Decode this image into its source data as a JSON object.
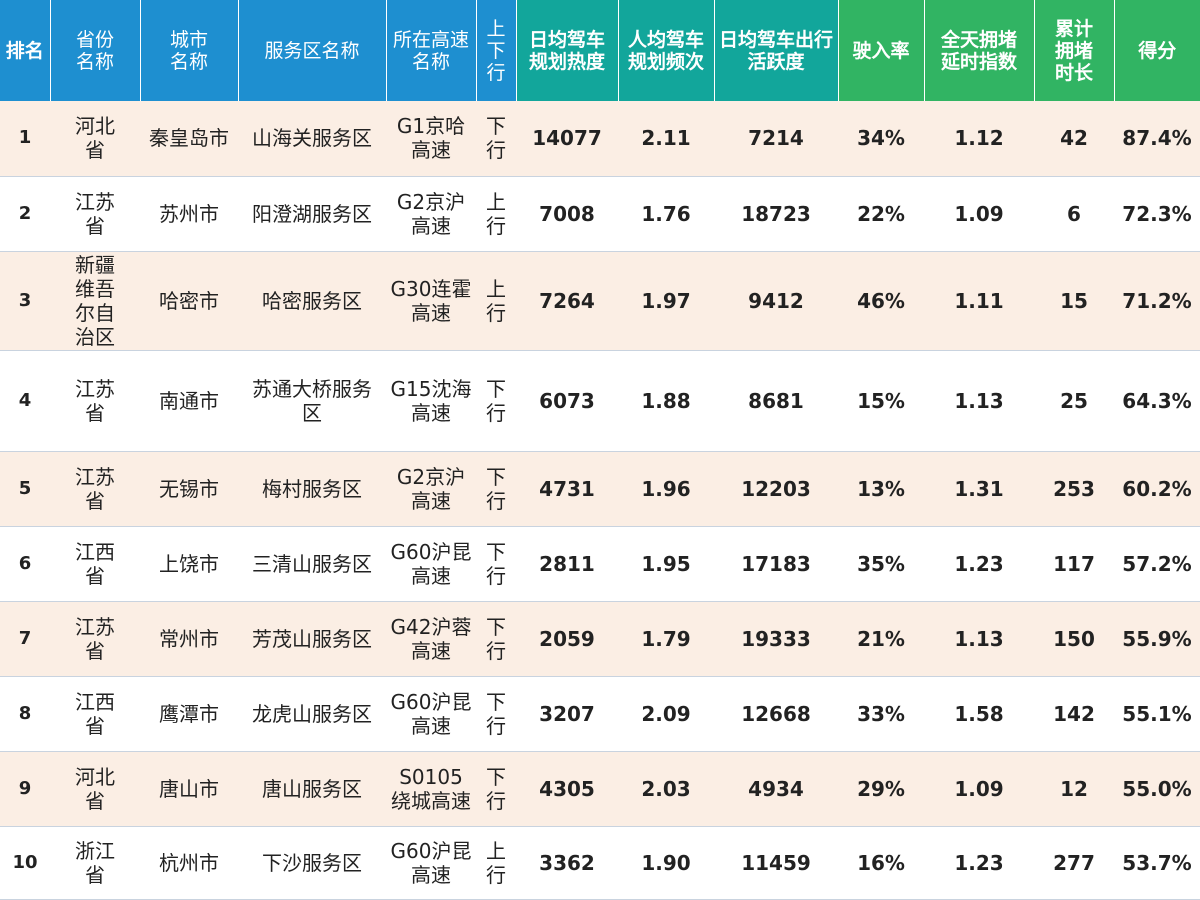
{
  "headers": {
    "rank": "排名",
    "province": "省份名称",
    "city": "城市名称",
    "service_area": "服务区名称",
    "highway": "所在高速名称",
    "direction": "上下行",
    "daily_heat": "日均驾车规划热度",
    "per_capita_freq": "人均驾车规划频次",
    "daily_activity": "日均驾车出行活跃度",
    "entry_rate": "驶入率",
    "congestion_index": "全天拥堵延时指数",
    "cumulative_hours": "累计拥堵时长",
    "score": "得分"
  },
  "rows": [
    {
      "rank": "1",
      "province": "河北省",
      "city": "秦皇岛市",
      "service_area": "山海关服务区",
      "highway": "G1京哈高速",
      "direction": "下行",
      "daily_heat": "14077",
      "per_capita_freq": "2.11",
      "daily_activity": "7214",
      "entry_rate": "34%",
      "congestion_index": "1.12",
      "cumulative_hours": "42",
      "score": "87.4%"
    },
    {
      "rank": "2",
      "province": "江苏省",
      "city": "苏州市",
      "service_area": "阳澄湖服务区",
      "highway": "G2京沪高速",
      "direction": "上行",
      "daily_heat": "7008",
      "per_capita_freq": "1.76",
      "daily_activity": "18723",
      "entry_rate": "22%",
      "congestion_index": "1.09",
      "cumulative_hours": "6",
      "score": "72.3%"
    },
    {
      "rank": "3",
      "province": "新疆维吾尔自治区",
      "city": "哈密市",
      "service_area": "哈密服务区",
      "highway": "G30连霍高速",
      "direction": "上行",
      "daily_heat": "7264",
      "per_capita_freq": "1.97",
      "daily_activity": "9412",
      "entry_rate": "46%",
      "congestion_index": "1.11",
      "cumulative_hours": "15",
      "score": "71.2%"
    },
    {
      "rank": "4",
      "province": "江苏省",
      "city": "南通市",
      "service_area": "苏通大桥服务区",
      "highway": "G15沈海高速",
      "direction": "下行",
      "daily_heat": "6073",
      "per_capita_freq": "1.88",
      "daily_activity": "8681",
      "entry_rate": "15%",
      "congestion_index": "1.13",
      "cumulative_hours": "25",
      "score": "64.3%"
    },
    {
      "rank": "5",
      "province": "江苏省",
      "city": "无锡市",
      "service_area": "梅村服务区",
      "highway": "G2京沪高速",
      "direction": "下行",
      "daily_heat": "4731",
      "per_capita_freq": "1.96",
      "daily_activity": "12203",
      "entry_rate": "13%",
      "congestion_index": "1.31",
      "cumulative_hours": "253",
      "score": "60.2%"
    },
    {
      "rank": "6",
      "province": "江西省",
      "city": "上饶市",
      "service_area": "三清山服务区",
      "highway": "G60沪昆高速",
      "direction": "下行",
      "daily_heat": "2811",
      "per_capita_freq": "1.95",
      "daily_activity": "17183",
      "entry_rate": "35%",
      "congestion_index": "1.23",
      "cumulative_hours": "117",
      "score": "57.2%"
    },
    {
      "rank": "7",
      "province": "江苏省",
      "city": "常州市",
      "service_area": "芳茂山服务区",
      "highway": "G42沪蓉高速",
      "direction": "下行",
      "daily_heat": "2059",
      "per_capita_freq": "1.79",
      "daily_activity": "19333",
      "entry_rate": "21%",
      "congestion_index": "1.13",
      "cumulative_hours": "150",
      "score": "55.9%"
    },
    {
      "rank": "8",
      "province": "江西省",
      "city": "鹰潭市",
      "service_area": "龙虎山服务区",
      "highway": "G60沪昆高速",
      "direction": "下行",
      "daily_heat": "3207",
      "per_capita_freq": "2.09",
      "daily_activity": "12668",
      "entry_rate": "33%",
      "congestion_index": "1.58",
      "cumulative_hours": "142",
      "score": "55.1%"
    },
    {
      "rank": "9",
      "province": "河北省",
      "city": "唐山市",
      "service_area": "唐山服务区",
      "highway": "S0105绕城高速",
      "direction": "下行",
      "daily_heat": "4305",
      "per_capita_freq": "2.03",
      "daily_activity": "4934",
      "entry_rate": "29%",
      "congestion_index": "1.09",
      "cumulative_hours": "12",
      "score": "55.0%"
    },
    {
      "rank": "10",
      "province": "浙江省",
      "city": "杭州市",
      "service_area": "下沙服务区",
      "highway": "G60沪昆高速",
      "direction": "上行",
      "daily_heat": "3362",
      "per_capita_freq": "1.90",
      "daily_activity": "11459",
      "entry_rate": "16%",
      "congestion_index": "1.23",
      "cumulative_hours": "277",
      "score": "53.7%"
    }
  ]
}
